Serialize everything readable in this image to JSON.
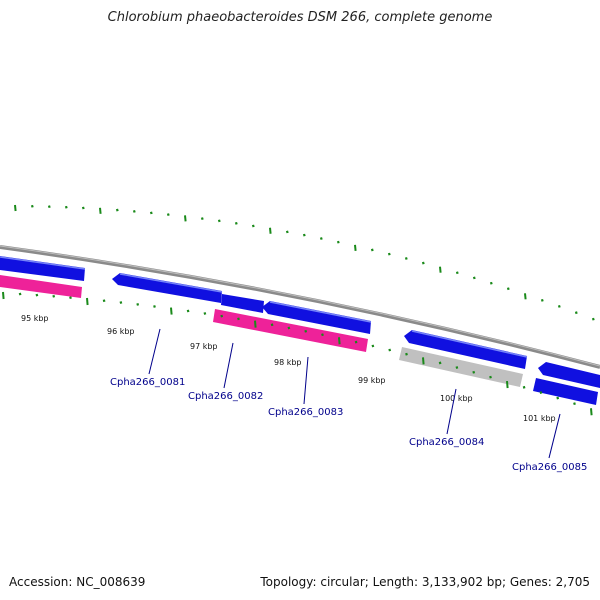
{
  "title": "Chlorobium phaeobacteroides DSM 266, complete genome",
  "footer": {
    "accession": "Accession: NC_008639",
    "summary": "Topology: circular; Length: 3,133,902 bp; Genes: 2,705"
  },
  "colors": {
    "backbone": "#888888",
    "gene_forward": "#1010e0",
    "gene_rna": "#ee2299",
    "gene_other": "#c0c0c0",
    "ticks": "#1a8a1a",
    "label": "#00008b"
  },
  "scale_marks": [
    {
      "label": "95 kbp"
    },
    {
      "label": "96 kbp"
    },
    {
      "label": "97 kbp"
    },
    {
      "label": "98 kbp"
    },
    {
      "label": "99 kbp"
    },
    {
      "label": "100 kbp"
    },
    {
      "label": "101 kbp"
    }
  ],
  "gene_labels": [
    {
      "label": "Cpha266_0081"
    },
    {
      "label": "Cpha266_0082"
    },
    {
      "label": "Cpha266_0083"
    },
    {
      "label": "Cpha266_0084"
    },
    {
      "label": "Cpha266_0085"
    }
  ]
}
